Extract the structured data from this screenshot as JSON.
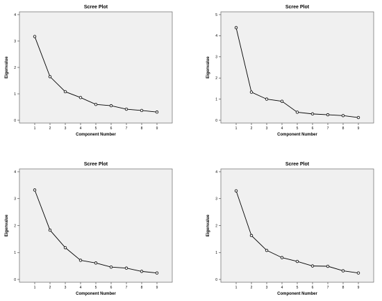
{
  "chart_data": [
    {
      "type": "line",
      "title": "Scree Plot",
      "xlabel": "Component Number",
      "ylabel": "Eigenvalue",
      "x": [
        1,
        2,
        3,
        4,
        5,
        6,
        7,
        8,
        9
      ],
      "y": [
        3.17,
        1.65,
        1.08,
        0.86,
        0.6,
        0.55,
        0.42,
        0.37,
        0.31
      ],
      "xlim": [
        0,
        10
      ],
      "ylim": [
        0,
        4
      ],
      "xticks": [
        "1",
        "2",
        "3",
        "4",
        "5",
        "6",
        "7",
        "8",
        "9"
      ],
      "yticks": [
        "0",
        "1",
        "2",
        "3",
        "4"
      ],
      "grid": false,
      "marker": "open-circle"
    },
    {
      "type": "line",
      "title": "Scree Plot",
      "xlabel": "Component Number",
      "ylabel": "Eigenvalue",
      "x": [
        1,
        2,
        3,
        4,
        5,
        6,
        7,
        8,
        9
      ],
      "y": [
        4.38,
        1.33,
        1.0,
        0.9,
        0.38,
        0.3,
        0.26,
        0.22,
        0.13
      ],
      "xlim": [
        0,
        10
      ],
      "ylim": [
        0,
        5
      ],
      "xticks": [
        "1",
        "2",
        "3",
        "4",
        "5",
        "6",
        "7",
        "8",
        "9"
      ],
      "yticks": [
        "0",
        "1",
        "2",
        "3",
        "4",
        "5"
      ],
      "grid": false,
      "marker": "open-circle"
    },
    {
      "type": "line",
      "title": "Scree Plot",
      "xlabel": "Component Number",
      "ylabel": "Eigenvalue",
      "x": [
        1,
        2,
        3,
        4,
        5,
        6,
        7,
        8,
        9
      ],
      "y": [
        3.32,
        1.83,
        1.18,
        0.71,
        0.61,
        0.46,
        0.42,
        0.3,
        0.24
      ],
      "xlim": [
        0,
        10
      ],
      "ylim": [
        0,
        4
      ],
      "xticks": [
        "1",
        "2",
        "3",
        "4",
        "5",
        "6",
        "7",
        "8",
        "9"
      ],
      "yticks": [
        "0",
        "1",
        "2",
        "3",
        "4"
      ],
      "grid": false,
      "marker": "open-circle"
    },
    {
      "type": "line",
      "title": "Scree Plot",
      "xlabel": "Component Number",
      "ylabel": "Eigenvalue",
      "x": [
        1,
        2,
        3,
        4,
        5,
        6,
        7,
        8,
        9
      ],
      "y": [
        3.29,
        1.63,
        1.08,
        0.81,
        0.67,
        0.5,
        0.49,
        0.32,
        0.24
      ],
      "xlim": [
        0,
        10
      ],
      "ylim": [
        0,
        4
      ],
      "xticks": [
        "1",
        "2",
        "3",
        "4",
        "5",
        "6",
        "7",
        "8",
        "9"
      ],
      "yticks": [
        "0",
        "1",
        "2",
        "3",
        "4"
      ],
      "grid": false,
      "marker": "open-circle"
    }
  ]
}
